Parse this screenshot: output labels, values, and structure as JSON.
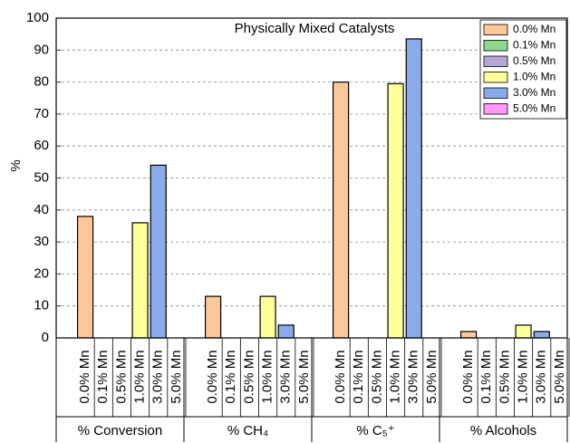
{
  "chart_data": {
    "type": "bar",
    "title": "Physically Mixed Catalysts",
    "y_label": "%",
    "categories": [
      "% Conversion",
      "% CH₄",
      "% C₅⁺",
      "% Alcohols"
    ],
    "series": [
      {
        "name": "0.0% Mn",
        "color": "#fbc89a",
        "values": [
          38,
          13,
          80,
          2
        ]
      },
      {
        "name": "0.1% Mn",
        "color": "#90d890",
        "values": [
          null,
          null,
          null,
          null
        ]
      },
      {
        "name": "0.5% Mn",
        "color": "#b8a8d8",
        "values": [
          null,
          null,
          null,
          null
        ]
      },
      {
        "name": "1.0% Mn",
        "color": "#ffff99",
        "values": [
          36,
          13,
          79.5,
          4
        ]
      },
      {
        "name": "3.0% Mn",
        "color": "#8aaaea",
        "values": [
          54,
          4,
          93.5,
          2
        ]
      },
      {
        "name": "5.0% Mn",
        "color": "#ff99ff",
        "values": [
          null,
          null,
          null,
          null
        ]
      }
    ],
    "ylim": [
      0,
      100
    ],
    "yticks": [
      0,
      10,
      20,
      30,
      40,
      50,
      60,
      70,
      80,
      90,
      100
    ],
    "grid": true,
    "legend": "top-right"
  }
}
